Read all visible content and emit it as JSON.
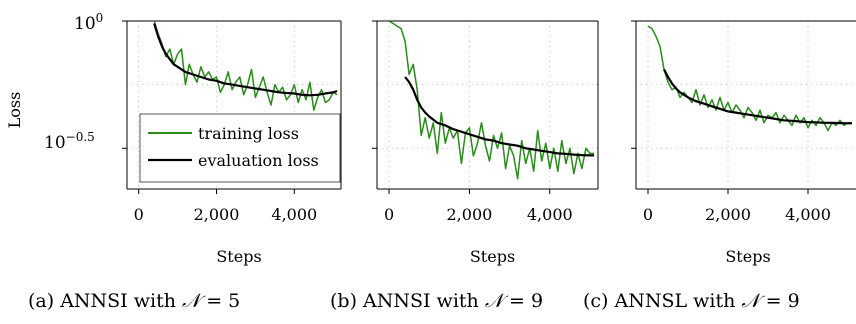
{
  "figure": {
    "shared_ylabel": "Loss",
    "shared_xlabel": "Steps",
    "y_ticks": [
      {
        "value": 0,
        "base": "10",
        "exp": "0"
      },
      {
        "value": -0.5,
        "base": "10",
        "exp": "−0.5"
      }
    ],
    "x_ticks": [
      {
        "value": 0,
        "label": "0"
      },
      {
        "value": 2000,
        "label": "2,000"
      },
      {
        "value": 4000,
        "label": "4,000"
      }
    ],
    "legend": {
      "training": "training loss",
      "evaluation": "evaluation loss",
      "placement": "lower-left of panel (a)"
    },
    "colors": {
      "training": "#2a8a1c",
      "evaluation": "#000000",
      "grid": "#b5b5b5"
    },
    "grid": true,
    "y_scale": "log10"
  },
  "chart_data": [
    {
      "type": "line",
      "caption_prefix": "(a) ANNSI with ",
      "caption_math": "𝒩",
      "caption_suffix": " = 5",
      "xlabel": "Steps",
      "ylabel": "Loss",
      "xlim": [
        -300,
        5200
      ],
      "ylim_log10": [
        -0.66,
        0.0
      ],
      "series": [
        {
          "name": "training loss",
          "x": [
            400,
            500,
            600,
            700,
            800,
            900,
            1000,
            1100,
            1200,
            1300,
            1400,
            1500,
            1600,
            1700,
            1800,
            1900,
            2000,
            2100,
            2200,
            2300,
            2400,
            2500,
            2600,
            2700,
            2800,
            2900,
            3000,
            3100,
            3200,
            3300,
            3400,
            3500,
            3600,
            3700,
            3800,
            3900,
            4000,
            4100,
            4200,
            4300,
            4400,
            4500,
            4600,
            4700,
            4800,
            4900,
            5000,
            5100
          ],
          "log10_loss": [
            0.0,
            -0.05,
            -0.09,
            -0.14,
            -0.11,
            -0.17,
            -0.13,
            -0.11,
            -0.25,
            -0.17,
            -0.21,
            -0.24,
            -0.18,
            -0.22,
            -0.2,
            -0.23,
            -0.22,
            -0.28,
            -0.25,
            -0.2,
            -0.27,
            -0.24,
            -0.22,
            -0.29,
            -0.25,
            -0.19,
            -0.3,
            -0.26,
            -0.22,
            -0.28,
            -0.33,
            -0.25,
            -0.28,
            -0.26,
            -0.31,
            -0.29,
            -0.25,
            -0.32,
            -0.27,
            -0.31,
            -0.24,
            -0.35,
            -0.3,
            -0.27,
            -0.32,
            -0.31,
            -0.28,
            -0.29
          ]
        },
        {
          "name": "evaluation loss",
          "x": [
            400,
            500,
            600,
            700,
            800,
            900,
            1000,
            1200,
            1400,
            1600,
            1800,
            2000,
            2200,
            2400,
            2600,
            2800,
            3000,
            3200,
            3400,
            3600,
            3800,
            4000,
            4200,
            4400,
            4600,
            4800,
            5000,
            5100
          ],
          "log10_loss": [
            -0.01,
            -0.06,
            -0.1,
            -0.13,
            -0.15,
            -0.17,
            -0.18,
            -0.2,
            -0.21,
            -0.22,
            -0.23,
            -0.235,
            -0.245,
            -0.25,
            -0.255,
            -0.26,
            -0.265,
            -0.27,
            -0.275,
            -0.28,
            -0.283,
            -0.285,
            -0.29,
            -0.292,
            -0.29,
            -0.285,
            -0.28,
            -0.275
          ]
        }
      ]
    },
    {
      "type": "line",
      "caption_prefix": "(b) ANNSI with ",
      "caption_math": "𝒩",
      "caption_suffix": " = 9",
      "xlabel": "Steps",
      "xlim": [
        -300,
        5200
      ],
      "ylim_log10": [
        -0.66,
        0.0
      ],
      "series": [
        {
          "name": "training loss",
          "x": [
            0,
            100,
            200,
            300,
            400,
            500,
            600,
            700,
            800,
            900,
            1000,
            1100,
            1200,
            1300,
            1400,
            1500,
            1600,
            1700,
            1800,
            1900,
            2000,
            2100,
            2200,
            2300,
            2400,
            2500,
            2600,
            2700,
            2800,
            2900,
            3000,
            3100,
            3200,
            3300,
            3400,
            3500,
            3600,
            3700,
            3800,
            3900,
            4000,
            4100,
            4200,
            4300,
            4400,
            4500,
            4600,
            4700,
            4800,
            4900,
            5000,
            5100
          ],
          "log10_loss": [
            0.0,
            -0.01,
            -0.02,
            -0.03,
            -0.08,
            -0.21,
            -0.17,
            -0.27,
            -0.45,
            -0.38,
            -0.46,
            -0.4,
            -0.52,
            -0.36,
            -0.48,
            -0.42,
            -0.46,
            -0.43,
            -0.56,
            -0.44,
            -0.42,
            -0.53,
            -0.48,
            -0.4,
            -0.49,
            -0.55,
            -0.45,
            -0.5,
            -0.44,
            -0.58,
            -0.49,
            -0.53,
            -0.62,
            -0.47,
            -0.56,
            -0.5,
            -0.59,
            -0.43,
            -0.55,
            -0.48,
            -0.58,
            -0.5,
            -0.59,
            -0.47,
            -0.56,
            -0.5,
            -0.6,
            -0.52,
            -0.58,
            -0.5,
            -0.52,
            -0.52
          ]
        },
        {
          "name": "evaluation loss",
          "x": [
            400,
            500,
            600,
            700,
            800,
            900,
            1000,
            1200,
            1400,
            1600,
            1800,
            2000,
            2200,
            2400,
            2600,
            2800,
            3000,
            3200,
            3400,
            3600,
            3800,
            4000,
            4200,
            4400,
            4600,
            4800,
            5000,
            5100
          ],
          "log10_loss": [
            -0.22,
            -0.24,
            -0.27,
            -0.31,
            -0.34,
            -0.36,
            -0.375,
            -0.4,
            -0.41,
            -0.425,
            -0.435,
            -0.445,
            -0.455,
            -0.465,
            -0.47,
            -0.48,
            -0.485,
            -0.49,
            -0.5,
            -0.505,
            -0.51,
            -0.515,
            -0.52,
            -0.522,
            -0.525,
            -0.527,
            -0.528,
            -0.528
          ]
        }
      ]
    },
    {
      "type": "line",
      "caption_prefix": "(c) ANNSL with ",
      "caption_math": "𝒩",
      "caption_suffix": " = 9",
      "xlabel": "Steps",
      "xlim": [
        -300,
        5200
      ],
      "ylim_log10": [
        -0.66,
        0.0
      ],
      "series": [
        {
          "name": "training loss",
          "x": [
            0,
            100,
            200,
            300,
            400,
            500,
            600,
            700,
            800,
            900,
            1000,
            1100,
            1200,
            1300,
            1400,
            1500,
            1600,
            1700,
            1800,
            1900,
            2000,
            2100,
            2200,
            2300,
            2400,
            2500,
            2600,
            2700,
            2800,
            2900,
            3000,
            3100,
            3200,
            3300,
            3400,
            3500,
            3600,
            3700,
            3800,
            3900,
            4000,
            4100,
            4200,
            4300,
            4400,
            4500,
            4600,
            4700,
            4800,
            4900,
            5000,
            5100
          ],
          "log10_loss": [
            -0.02,
            -0.03,
            -0.06,
            -0.1,
            -0.19,
            -0.24,
            -0.27,
            -0.26,
            -0.3,
            -0.28,
            -0.3,
            -0.32,
            -0.27,
            -0.33,
            -0.29,
            -0.34,
            -0.31,
            -0.35,
            -0.3,
            -0.35,
            -0.32,
            -0.36,
            -0.33,
            -0.35,
            -0.38,
            -0.34,
            -0.36,
            -0.39,
            -0.35,
            -0.4,
            -0.37,
            -0.38,
            -0.36,
            -0.4,
            -0.37,
            -0.39,
            -0.41,
            -0.37,
            -0.4,
            -0.38,
            -0.42,
            -0.39,
            -0.41,
            -0.38,
            -0.4,
            -0.43,
            -0.4,
            -0.41,
            -0.39,
            -0.41,
            -0.4,
            -0.4
          ]
        },
        {
          "name": "evaluation loss",
          "x": [
            400,
            500,
            600,
            700,
            800,
            900,
            1000,
            1200,
            1400,
            1600,
            1800,
            2000,
            2200,
            2400,
            2600,
            2800,
            3000,
            3200,
            3400,
            3600,
            3800,
            4000,
            4200,
            4400,
            4600,
            4800,
            5000,
            5100
          ],
          "log10_loss": [
            -0.19,
            -0.22,
            -0.245,
            -0.265,
            -0.28,
            -0.29,
            -0.3,
            -0.315,
            -0.325,
            -0.335,
            -0.345,
            -0.355,
            -0.36,
            -0.365,
            -0.37,
            -0.375,
            -0.38,
            -0.385,
            -0.39,
            -0.392,
            -0.395,
            -0.397,
            -0.398,
            -0.4,
            -0.4,
            -0.401,
            -0.402,
            -0.402
          ]
        }
      ]
    }
  ]
}
